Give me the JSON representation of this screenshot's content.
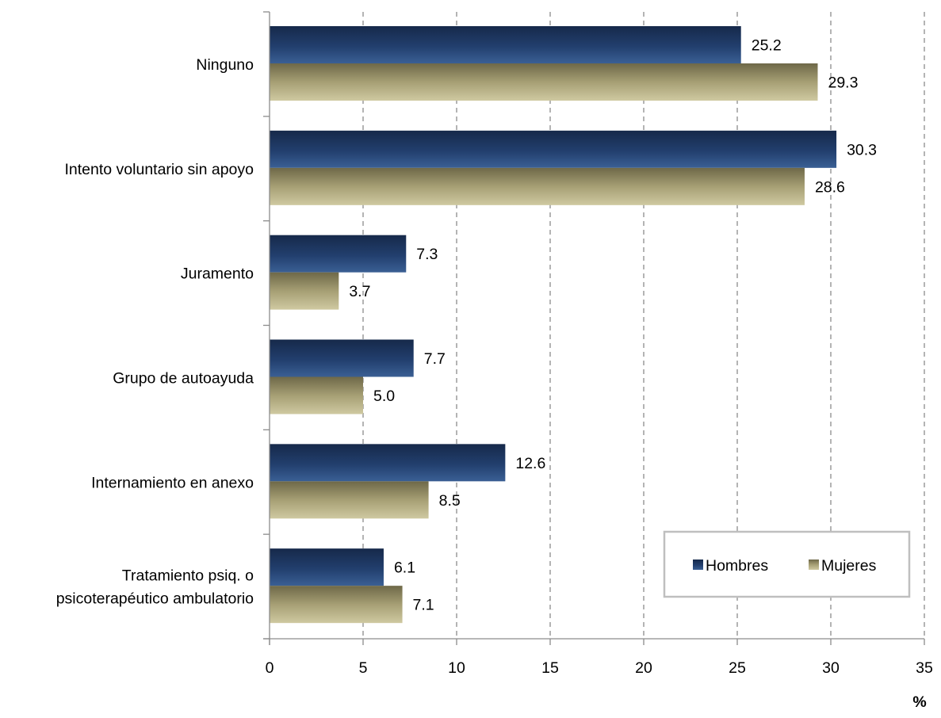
{
  "chart_data": {
    "type": "bar",
    "orientation": "horizontal",
    "categories": [
      "Ninguno",
      "Intento voluntario sin apoyo",
      "Juramento",
      "Grupo de autoayuda",
      "Internamiento en anexo",
      "Tratamiento psiq. o psicoterapéutico ambulatorio"
    ],
    "category_lines": [
      [
        "Ninguno"
      ],
      [
        "Intento voluntario sin apoyo"
      ],
      [
        "Juramento"
      ],
      [
        "Grupo de autoayuda"
      ],
      [
        "Internamiento en anexo"
      ],
      [
        "Tratamiento psiq. o",
        "psicoterapéutico ambulatorio"
      ]
    ],
    "series": [
      {
        "name": "Hombres",
        "values": [
          25.2,
          30.3,
          7.3,
          7.7,
          12.6,
          6.1
        ],
        "color": "#1f3864"
      },
      {
        "name": "Mujeres",
        "values": [
          29.3,
          28.6,
          3.7,
          5.0,
          8.5,
          7.1
        ],
        "color": "#a69f74"
      }
    ],
    "data_labels": [
      [
        "25.2",
        "30.3",
        "7.3",
        "7.7",
        "12.6",
        "6.1"
      ],
      [
        "29.3",
        "28.6",
        "3.7",
        "5.0",
        "8.5",
        "7.1"
      ]
    ],
    "xlim": [
      0,
      35
    ],
    "xticks": [
      0,
      5,
      10,
      15,
      20,
      25,
      30,
      35
    ],
    "xunit": "%",
    "grid": "vertical dashed",
    "legend_position": "bottom-right"
  }
}
